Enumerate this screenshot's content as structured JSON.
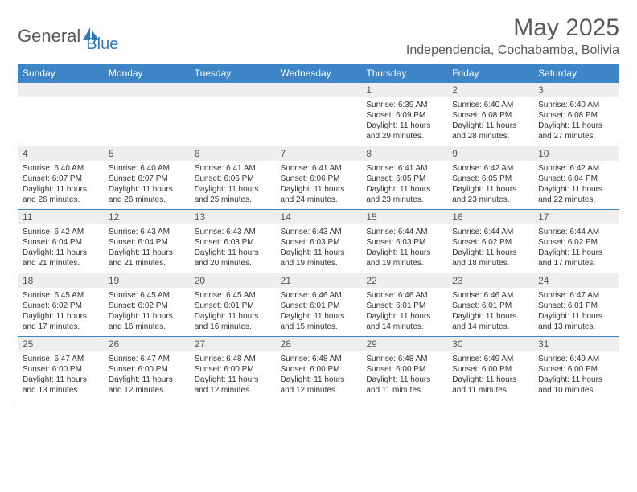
{
  "logo": {
    "text1": "General",
    "text2": "Blue"
  },
  "title": "May 2025",
  "location": "Independencia, Cochabamba, Bolivia",
  "colors": {
    "header_bg": "#3d85c6",
    "header_text": "#ffffff",
    "daynum_bg": "#eeeeee",
    "body_text": "#333333",
    "title_text": "#5a5a5a",
    "row_border": "#3d85c6",
    "logo_accent": "#2f78c2"
  },
  "typography": {
    "title_fontsize": 30,
    "location_fontsize": 16,
    "dow_fontsize": 12,
    "daynum_fontsize": 12,
    "detail_fontsize": 10
  },
  "days_of_week": [
    "Sunday",
    "Monday",
    "Tuesday",
    "Wednesday",
    "Thursday",
    "Friday",
    "Saturday"
  ],
  "weeks": [
    [
      null,
      null,
      null,
      null,
      {
        "n": "1",
        "sunrise": "6:39 AM",
        "sunset": "6:09 PM",
        "daylight": "11 hours and 29 minutes."
      },
      {
        "n": "2",
        "sunrise": "6:40 AM",
        "sunset": "6:08 PM",
        "daylight": "11 hours and 28 minutes."
      },
      {
        "n": "3",
        "sunrise": "6:40 AM",
        "sunset": "6:08 PM",
        "daylight": "11 hours and 27 minutes."
      }
    ],
    [
      {
        "n": "4",
        "sunrise": "6:40 AM",
        "sunset": "6:07 PM",
        "daylight": "11 hours and 26 minutes."
      },
      {
        "n": "5",
        "sunrise": "6:40 AM",
        "sunset": "6:07 PM",
        "daylight": "11 hours and 26 minutes."
      },
      {
        "n": "6",
        "sunrise": "6:41 AM",
        "sunset": "6:06 PM",
        "daylight": "11 hours and 25 minutes."
      },
      {
        "n": "7",
        "sunrise": "6:41 AM",
        "sunset": "6:06 PM",
        "daylight": "11 hours and 24 minutes."
      },
      {
        "n": "8",
        "sunrise": "6:41 AM",
        "sunset": "6:05 PM",
        "daylight": "11 hours and 23 minutes."
      },
      {
        "n": "9",
        "sunrise": "6:42 AM",
        "sunset": "6:05 PM",
        "daylight": "11 hours and 23 minutes."
      },
      {
        "n": "10",
        "sunrise": "6:42 AM",
        "sunset": "6:04 PM",
        "daylight": "11 hours and 22 minutes."
      }
    ],
    [
      {
        "n": "11",
        "sunrise": "6:42 AM",
        "sunset": "6:04 PM",
        "daylight": "11 hours and 21 minutes."
      },
      {
        "n": "12",
        "sunrise": "6:43 AM",
        "sunset": "6:04 PM",
        "daylight": "11 hours and 21 minutes."
      },
      {
        "n": "13",
        "sunrise": "6:43 AM",
        "sunset": "6:03 PM",
        "daylight": "11 hours and 20 minutes."
      },
      {
        "n": "14",
        "sunrise": "6:43 AM",
        "sunset": "6:03 PM",
        "daylight": "11 hours and 19 minutes."
      },
      {
        "n": "15",
        "sunrise": "6:44 AM",
        "sunset": "6:03 PM",
        "daylight": "11 hours and 19 minutes."
      },
      {
        "n": "16",
        "sunrise": "6:44 AM",
        "sunset": "6:02 PM",
        "daylight": "11 hours and 18 minutes."
      },
      {
        "n": "17",
        "sunrise": "6:44 AM",
        "sunset": "6:02 PM",
        "daylight": "11 hours and 17 minutes."
      }
    ],
    [
      {
        "n": "18",
        "sunrise": "6:45 AM",
        "sunset": "6:02 PM",
        "daylight": "11 hours and 17 minutes."
      },
      {
        "n": "19",
        "sunrise": "6:45 AM",
        "sunset": "6:02 PM",
        "daylight": "11 hours and 16 minutes."
      },
      {
        "n": "20",
        "sunrise": "6:45 AM",
        "sunset": "6:01 PM",
        "daylight": "11 hours and 16 minutes."
      },
      {
        "n": "21",
        "sunrise": "6:46 AM",
        "sunset": "6:01 PM",
        "daylight": "11 hours and 15 minutes."
      },
      {
        "n": "22",
        "sunrise": "6:46 AM",
        "sunset": "6:01 PM",
        "daylight": "11 hours and 14 minutes."
      },
      {
        "n": "23",
        "sunrise": "6:46 AM",
        "sunset": "6:01 PM",
        "daylight": "11 hours and 14 minutes."
      },
      {
        "n": "24",
        "sunrise": "6:47 AM",
        "sunset": "6:01 PM",
        "daylight": "11 hours and 13 minutes."
      }
    ],
    [
      {
        "n": "25",
        "sunrise": "6:47 AM",
        "sunset": "6:00 PM",
        "daylight": "11 hours and 13 minutes."
      },
      {
        "n": "26",
        "sunrise": "6:47 AM",
        "sunset": "6:00 PM",
        "daylight": "11 hours and 12 minutes."
      },
      {
        "n": "27",
        "sunrise": "6:48 AM",
        "sunset": "6:00 PM",
        "daylight": "11 hours and 12 minutes."
      },
      {
        "n": "28",
        "sunrise": "6:48 AM",
        "sunset": "6:00 PM",
        "daylight": "11 hours and 12 minutes."
      },
      {
        "n": "29",
        "sunrise": "6:48 AM",
        "sunset": "6:00 PM",
        "daylight": "11 hours and 11 minutes."
      },
      {
        "n": "30",
        "sunrise": "6:49 AM",
        "sunset": "6:00 PM",
        "daylight": "11 hours and 11 minutes."
      },
      {
        "n": "31",
        "sunrise": "6:49 AM",
        "sunset": "6:00 PM",
        "daylight": "11 hours and 10 minutes."
      }
    ]
  ],
  "labels": {
    "sunrise": "Sunrise:",
    "sunset": "Sunset:",
    "daylight": "Daylight:"
  }
}
